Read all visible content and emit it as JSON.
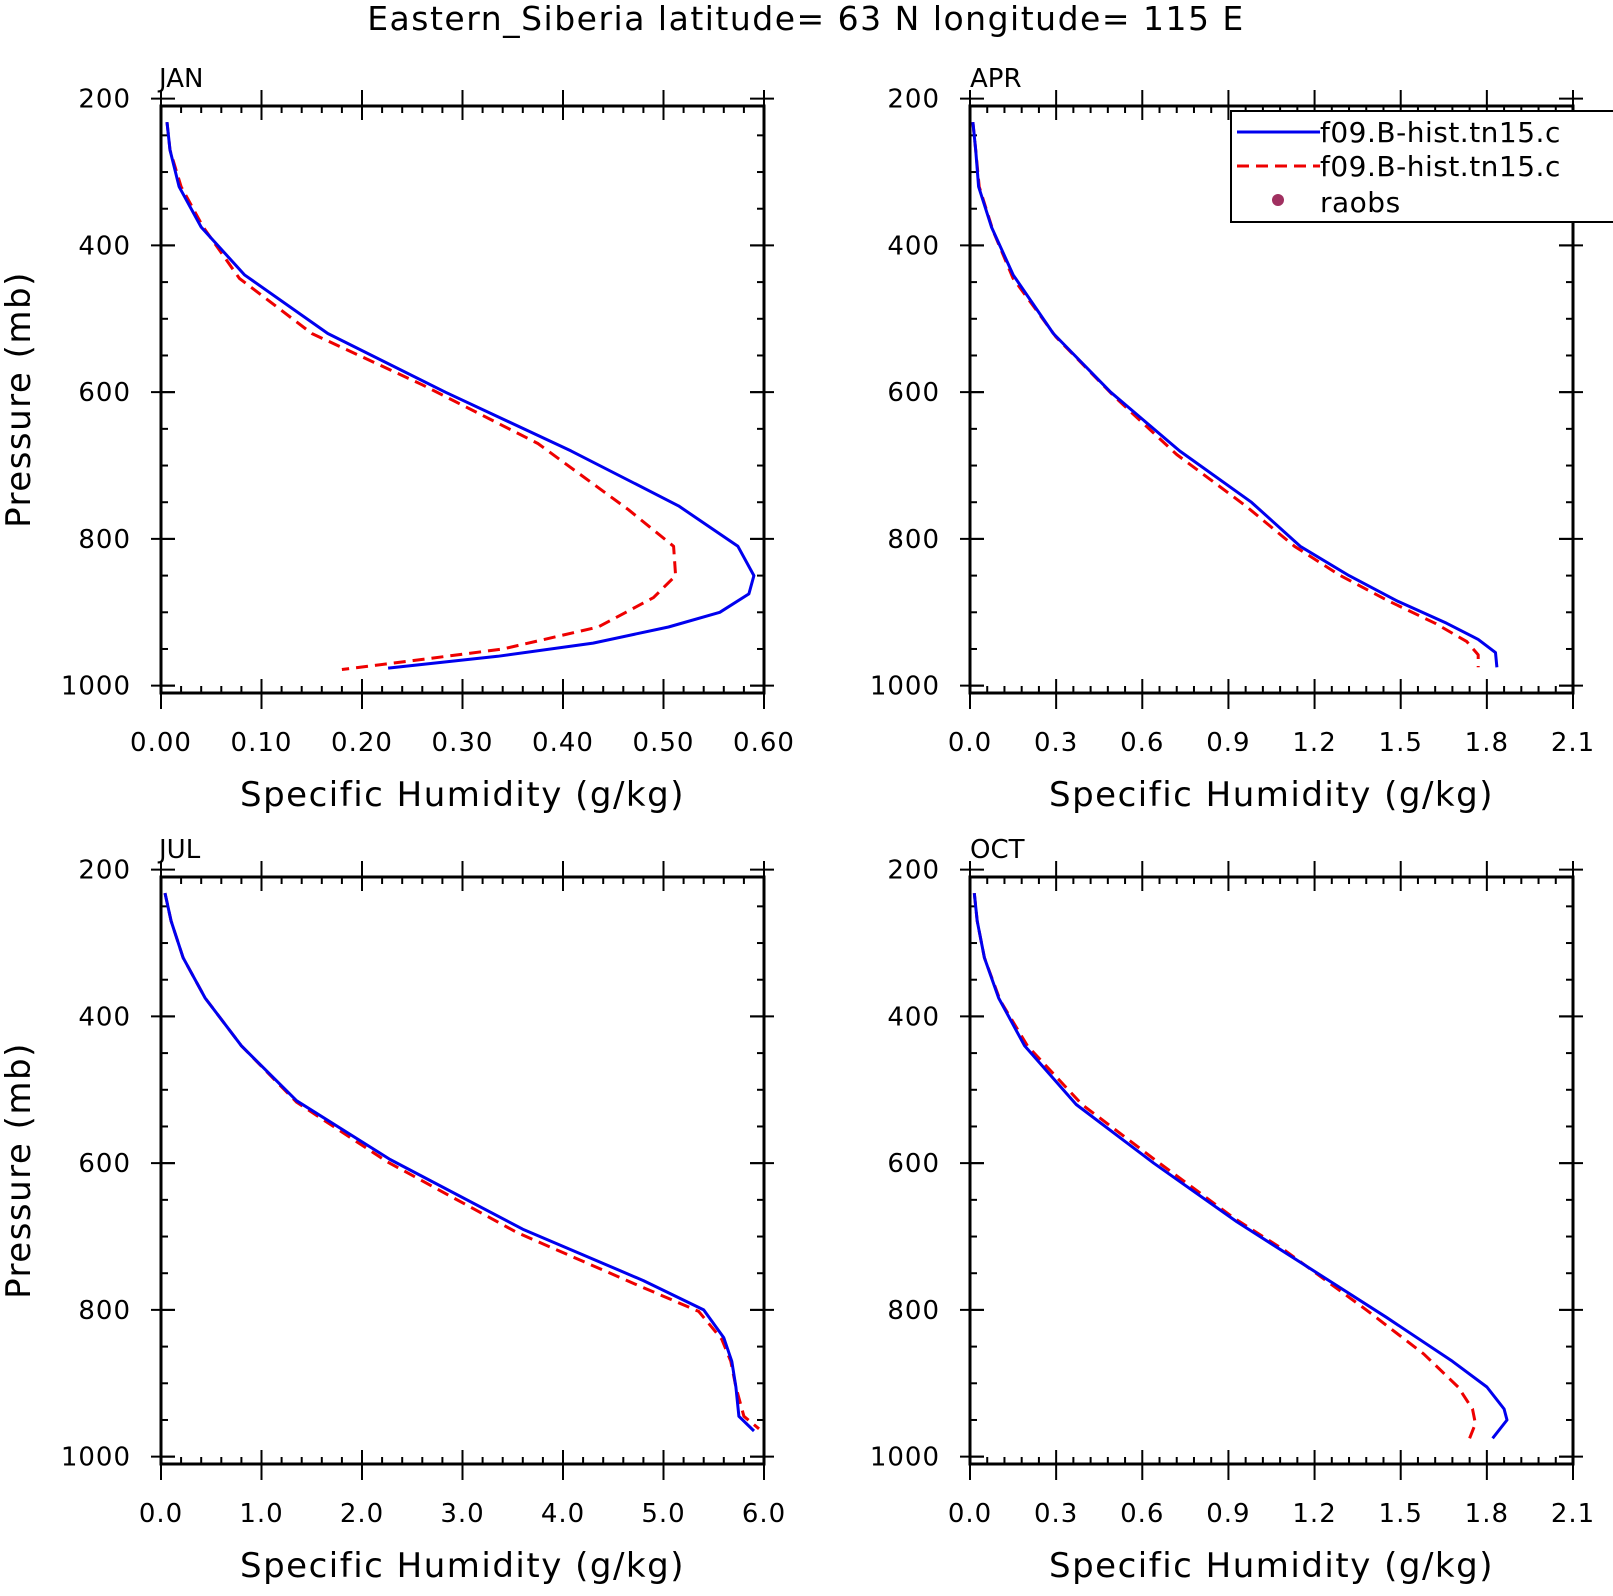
{
  "title": "Eastern_Siberia  latitude= 63 N longitude= 115 E",
  "colors": {
    "model_1": "#0000ee",
    "model_2": "#ee0000",
    "raobs": "#a03060"
  },
  "legend": {
    "placement": "top-right, overlapping APR panel",
    "entries": [
      {
        "label": "f09.B-hist.tn15.c",
        "style": "solid",
        "color": "#0000ee"
      },
      {
        "label": "f09.B-hist.tn15.c",
        "style": "dashed",
        "color": "#ee0000"
      },
      {
        "label": "raobs",
        "style": "dot",
        "color": "#a03060"
      }
    ]
  },
  "chart_data": [
    {
      "type": "line",
      "panel_title": "JAN",
      "xlabel": "Specific Humidity (g/kg)",
      "ylabel": "Pressure (mb)",
      "xlim": [
        0,
        0.6
      ],
      "ylim": [
        1000,
        200
      ],
      "y_inverted": true,
      "xticks": [
        "0.00",
        "0.10",
        "0.20",
        "0.30",
        "0.40",
        "0.50",
        "0.60"
      ],
      "yticks": [
        "200",
        "400",
        "600",
        "800",
        "1000"
      ],
      "series": [
        {
          "name": "f09.B-hist.tn15.c",
          "style": "solid",
          "color": "#0000ee",
          "points": [
            [
              0.006,
              232
            ],
            [
              0.009,
              270
            ],
            [
              0.018,
              320
            ],
            [
              0.04,
              375
            ],
            [
              0.083,
              440
            ],
            [
              0.166,
              520
            ],
            [
              0.283,
              600
            ],
            [
              0.408,
              680
            ],
            [
              0.515,
              755
            ],
            [
              0.574,
              810
            ],
            [
              0.59,
              850
            ],
            [
              0.585,
              875
            ],
            [
              0.556,
              900
            ],
            [
              0.505,
              920
            ],
            [
              0.43,
              942
            ],
            [
              0.335,
              960
            ],
            [
              0.226,
              976
            ]
          ]
        },
        {
          "name": "f09.B-hist.tn15.c",
          "style": "dashed",
          "color": "#ee0000",
          "points": [
            [
              0.006,
              232
            ],
            [
              0.009,
              270
            ],
            [
              0.02,
              320
            ],
            [
              0.042,
              375
            ],
            [
              0.078,
              445
            ],
            [
              0.15,
              520
            ],
            [
              0.26,
              590
            ],
            [
              0.375,
              670
            ],
            [
              0.465,
              760
            ],
            [
              0.51,
              810
            ],
            [
              0.512,
              850
            ],
            [
              0.49,
              880
            ],
            [
              0.435,
              920
            ],
            [
              0.34,
              950
            ],
            [
              0.25,
              966
            ],
            [
              0.18,
              978
            ]
          ]
        }
      ]
    },
    {
      "type": "line",
      "panel_title": "APR",
      "xlabel": "Specific Humidity (g/kg)",
      "ylabel": "",
      "xlim": [
        0,
        2.1
      ],
      "ylim": [
        1000,
        200
      ],
      "y_inverted": true,
      "xticks": [
        "0.0",
        "0.3",
        "0.6",
        "0.9",
        "1.2",
        "1.5",
        "1.8",
        "2.1"
      ],
      "yticks": [
        "200",
        "400",
        "600",
        "800",
        "1000"
      ],
      "series": [
        {
          "name": "f09.B-hist.tn15.c",
          "style": "solid",
          "color": "#0000ee",
          "points": [
            [
              0.01,
              232
            ],
            [
              0.02,
              270
            ],
            [
              0.03,
              320
            ],
            [
              0.075,
              375
            ],
            [
              0.15,
              440
            ],
            [
              0.29,
              520
            ],
            [
              0.49,
              600
            ],
            [
              0.73,
              680
            ],
            [
              0.98,
              750
            ],
            [
              1.15,
              810
            ],
            [
              1.32,
              850
            ],
            [
              1.49,
              885
            ],
            [
              1.66,
              915
            ],
            [
              1.77,
              937
            ],
            [
              1.83,
              955
            ],
            [
              1.835,
              975
            ]
          ]
        },
        {
          "name": "f09.B-hist.tn15.c",
          "style": "dashed",
          "color": "#ee0000",
          "points": [
            [
              0.01,
              232
            ],
            [
              0.02,
              270
            ],
            [
              0.032,
              320
            ],
            [
              0.08,
              380
            ],
            [
              0.15,
              445
            ],
            [
              0.3,
              525
            ],
            [
              0.5,
              605
            ],
            [
              0.72,
              685
            ],
            [
              0.96,
              755
            ],
            [
              1.13,
              810
            ],
            [
              1.29,
              850
            ],
            [
              1.46,
              885
            ],
            [
              1.62,
              915
            ],
            [
              1.73,
              940
            ],
            [
              1.77,
              958
            ],
            [
              1.77,
              975
            ]
          ]
        }
      ]
    },
    {
      "type": "line",
      "panel_title": "JUL",
      "xlabel": "Specific Humidity (g/kg)",
      "ylabel": "Pressure (mb)",
      "xlim": [
        0,
        6.0
      ],
      "ylim": [
        1000,
        200
      ],
      "y_inverted": true,
      "xticks": [
        "0.0",
        "1.0",
        "2.0",
        "3.0",
        "4.0",
        "5.0",
        "6.0"
      ],
      "yticks": [
        "200",
        "400",
        "600",
        "800",
        "1000"
      ],
      "series": [
        {
          "name": "f09.B-hist.tn15.c",
          "style": "solid",
          "color": "#0000ee",
          "points": [
            [
              0.04,
              232
            ],
            [
              0.1,
              270
            ],
            [
              0.22,
              320
            ],
            [
              0.44,
              375
            ],
            [
              0.8,
              440
            ],
            [
              1.35,
              515
            ],
            [
              2.28,
              595
            ],
            [
              3.6,
              690
            ],
            [
              4.8,
              760
            ],
            [
              5.4,
              800
            ],
            [
              5.6,
              838
            ],
            [
              5.68,
              870
            ],
            [
              5.72,
              905
            ],
            [
              5.75,
              945
            ],
            [
              5.9,
              965
            ]
          ]
        },
        {
          "name": "f09.B-hist.tn15.c",
          "style": "dashed",
          "color": "#ee0000",
          "points": [
            [
              0.04,
              232
            ],
            [
              0.1,
              270
            ],
            [
              0.22,
              320
            ],
            [
              0.44,
              375
            ],
            [
              0.8,
              440
            ],
            [
              1.35,
              517
            ],
            [
              2.25,
              598
            ],
            [
              3.55,
              695
            ],
            [
              4.72,
              765
            ],
            [
              5.35,
              802
            ],
            [
              5.58,
              840
            ],
            [
              5.67,
              870
            ],
            [
              5.72,
              905
            ],
            [
              5.8,
              945
            ],
            [
              5.95,
              962
            ]
          ]
        }
      ]
    },
    {
      "type": "line",
      "panel_title": "OCT",
      "xlabel": "Specific Humidity (g/kg)",
      "ylabel": "",
      "xlim": [
        0,
        2.1
      ],
      "ylim": [
        1000,
        200
      ],
      "y_inverted": true,
      "xticks": [
        "0.0",
        "0.3",
        "0.6",
        "0.9",
        "1.2",
        "1.5",
        "1.8",
        "2.1"
      ],
      "yticks": [
        "200",
        "400",
        "600",
        "800",
        "1000"
      ],
      "series": [
        {
          "name": "f09.B-hist.tn15.c",
          "style": "solid",
          "color": "#0000ee",
          "points": [
            [
              0.015,
              232
            ],
            [
              0.025,
              270
            ],
            [
              0.05,
              320
            ],
            [
              0.1,
              375
            ],
            [
              0.19,
              440
            ],
            [
              0.37,
              520
            ],
            [
              0.64,
              600
            ],
            [
              0.93,
              680
            ],
            [
              1.17,
              740
            ],
            [
              1.45,
              810
            ],
            [
              1.68,
              870
            ],
            [
              1.8,
              905
            ],
            [
              1.86,
              935
            ],
            [
              1.87,
              950
            ],
            [
              1.82,
              975
            ]
          ]
        },
        {
          "name": "f09.B-hist.tn15.c",
          "style": "dashed",
          "color": "#ee0000",
          "points": [
            [
              0.015,
              232
            ],
            [
              0.025,
              270
            ],
            [
              0.05,
              320
            ],
            [
              0.105,
              378
            ],
            [
              0.2,
              440
            ],
            [
              0.39,
              520
            ],
            [
              0.66,
              600
            ],
            [
              0.92,
              675
            ],
            [
              1.1,
              720
            ],
            [
              1.38,
              800
            ],
            [
              1.58,
              860
            ],
            [
              1.7,
              905
            ],
            [
              1.75,
              935
            ],
            [
              1.76,
              955
            ],
            [
              1.74,
              975
            ]
          ]
        }
      ]
    }
  ]
}
